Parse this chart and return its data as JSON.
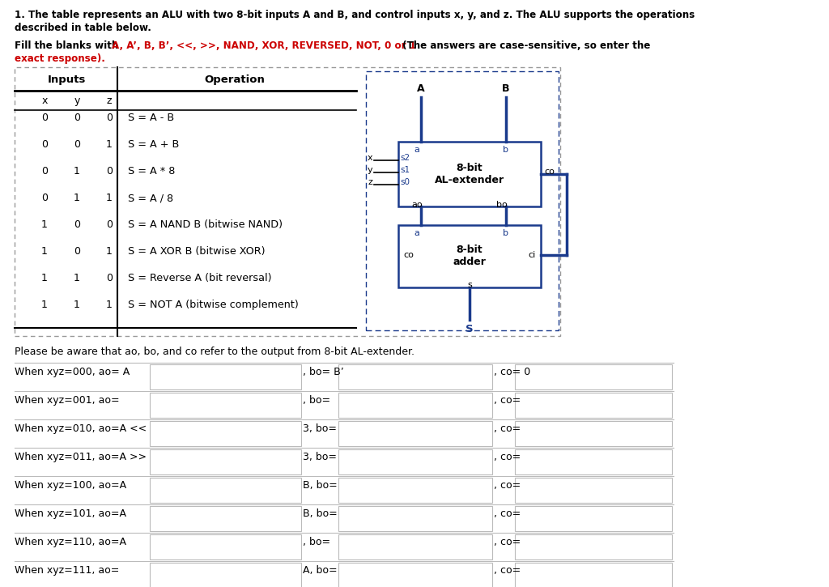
{
  "title_line1": "1. The table represents an ALU with two 8-bit inputs A and B, and control inputs x, y, and z. The ALU supports the operations",
  "title_line2": "described in table below.",
  "fill_prefix": "Fill the blanks with ",
  "fill_values": "A, A’, B, B’, <<, >>, NAND, XOR, REVERSED, NOT, 0 or 1",
  "fill_suffix": " (The answers are case-sensitive, so enter the",
  "fill_line2": "exact response).",
  "table_rows": [
    [
      "0",
      "0",
      "0",
      "S = A - B"
    ],
    [
      "0",
      "0",
      "1",
      "S = A + B"
    ],
    [
      "0",
      "1",
      "0",
      "S = A * 8"
    ],
    [
      "0",
      "1",
      "1",
      "S = A / 8"
    ],
    [
      "1",
      "0",
      "0",
      "S = A NAND B (bitwise NAND)"
    ],
    [
      "1",
      "0",
      "1",
      "S = A XOR B (bitwise XOR)"
    ],
    [
      "1",
      "1",
      "0",
      "S = Reverse A (bit reversal)"
    ],
    [
      "1",
      "1",
      "1",
      "S = NOT A (bitwise complement)"
    ]
  ],
  "note_text": "Please be aware that ao, bo, and co refer to the output from 8-bit AL-extender.",
  "fill_rows": [
    {
      "label": "When xyz=000, ao= A",
      "mid": ", bo= B’",
      "end": ", co= 0"
    },
    {
      "label": "When xyz=001, ao=",
      "mid": ", bo=",
      "end": ", co="
    },
    {
      "label": "When xyz=010, ao=A <<",
      "mid": "3, bo=",
      "end": ", co="
    },
    {
      "label": "When xyz=011, ao=A >>",
      "mid": "3, bo=",
      "end": ", co="
    },
    {
      "label": "When xyz=100, ao=A",
      "mid": "B, bo=",
      "end": ", co="
    },
    {
      "label": "When xyz=101, ao=A",
      "mid": "B, bo=",
      "end": ", co="
    },
    {
      "label": "When xyz=110, ao=A",
      "mid": ", bo=",
      "end": ", co="
    },
    {
      "label": "When xyz=111, ao=",
      "mid": "A, bo=",
      "end": ", co="
    }
  ],
  "bg_color": "#ffffff",
  "black": "#000000",
  "red": "#cc0000",
  "blue": "#1a3a8c",
  "gray_border": "#999999",
  "light_gray": "#bbbbbb"
}
